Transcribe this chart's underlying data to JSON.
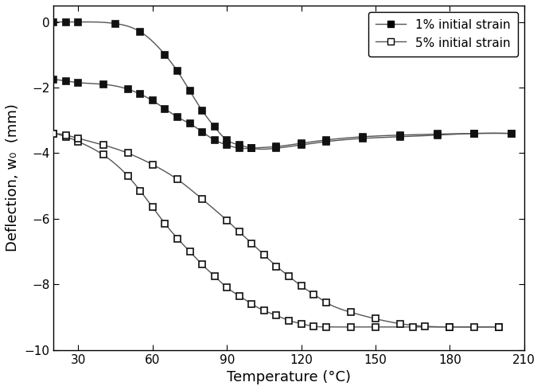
{
  "xlabel": "Temperature (°C)",
  "ylabel": "Deflection, w₀  (mm)",
  "xlim": [
    20,
    210
  ],
  "ylim": [
    -10,
    0.5
  ],
  "xticks": [
    30,
    60,
    90,
    120,
    150,
    180,
    210
  ],
  "yticks": [
    0,
    -2,
    -4,
    -6,
    -8,
    -10
  ],
  "legend_labels": [
    "1% initial strain",
    "5% initial strain"
  ],
  "curve1_heat_x": [
    20,
    25,
    30,
    45,
    55,
    65,
    70,
    75,
    80,
    85,
    90,
    95,
    100,
    110,
    120,
    130,
    145,
    160,
    175,
    190,
    205
  ],
  "curve1_heat_y": [
    0.0,
    0.0,
    0.0,
    -0.05,
    -0.3,
    -1.0,
    -1.5,
    -2.1,
    -2.7,
    -3.2,
    -3.6,
    -3.75,
    -3.85,
    -3.85,
    -3.75,
    -3.65,
    -3.55,
    -3.5,
    -3.45,
    -3.4,
    -3.4
  ],
  "curve1_cool_x": [
    20,
    25,
    30,
    40,
    50,
    55,
    60,
    65,
    70,
    75,
    80,
    85,
    90,
    95,
    100,
    110,
    120,
    130,
    145,
    160,
    175,
    190,
    205
  ],
  "curve1_cool_y": [
    -1.75,
    -1.8,
    -1.85,
    -1.9,
    -2.05,
    -2.2,
    -2.4,
    -2.65,
    -2.9,
    -3.1,
    -3.35,
    -3.6,
    -3.75,
    -3.85,
    -3.85,
    -3.8,
    -3.7,
    -3.6,
    -3.5,
    -3.45,
    -3.42,
    -3.4,
    -3.4
  ],
  "curve5_heat_x": [
    20,
    25,
    30,
    40,
    50,
    55,
    60,
    65,
    70,
    75,
    80,
    85,
    90,
    95,
    100,
    105,
    110,
    115,
    120,
    125,
    130,
    140,
    150,
    165,
    180,
    200
  ],
  "curve5_heat_y": [
    -3.4,
    -3.5,
    -3.65,
    -4.05,
    -4.7,
    -5.15,
    -5.65,
    -6.15,
    -6.6,
    -7.0,
    -7.4,
    -7.75,
    -8.1,
    -8.35,
    -8.6,
    -8.8,
    -8.95,
    -9.1,
    -9.2,
    -9.28,
    -9.3,
    -9.3,
    -9.3,
    -9.3,
    -9.3,
    -9.3
  ],
  "curve5_cool_x": [
    20,
    25,
    30,
    40,
    50,
    60,
    70,
    80,
    90,
    95,
    100,
    105,
    110,
    115,
    120,
    125,
    130,
    140,
    150,
    160,
    170,
    180,
    190,
    200
  ],
  "curve5_cool_y": [
    -3.4,
    -3.45,
    -3.55,
    -3.75,
    -4.0,
    -4.35,
    -4.8,
    -5.4,
    -6.05,
    -6.4,
    -6.75,
    -7.1,
    -7.45,
    -7.75,
    -8.05,
    -8.3,
    -8.55,
    -8.85,
    -9.05,
    -9.2,
    -9.28,
    -9.3,
    -9.3,
    -9.3
  ],
  "line_color": "#555555",
  "marker_color_filled": "#111111",
  "marker_color_open": "#111111",
  "background_color": "#ffffff",
  "fontsize_label": 13,
  "fontsize_tick": 11,
  "fontsize_legend": 11
}
